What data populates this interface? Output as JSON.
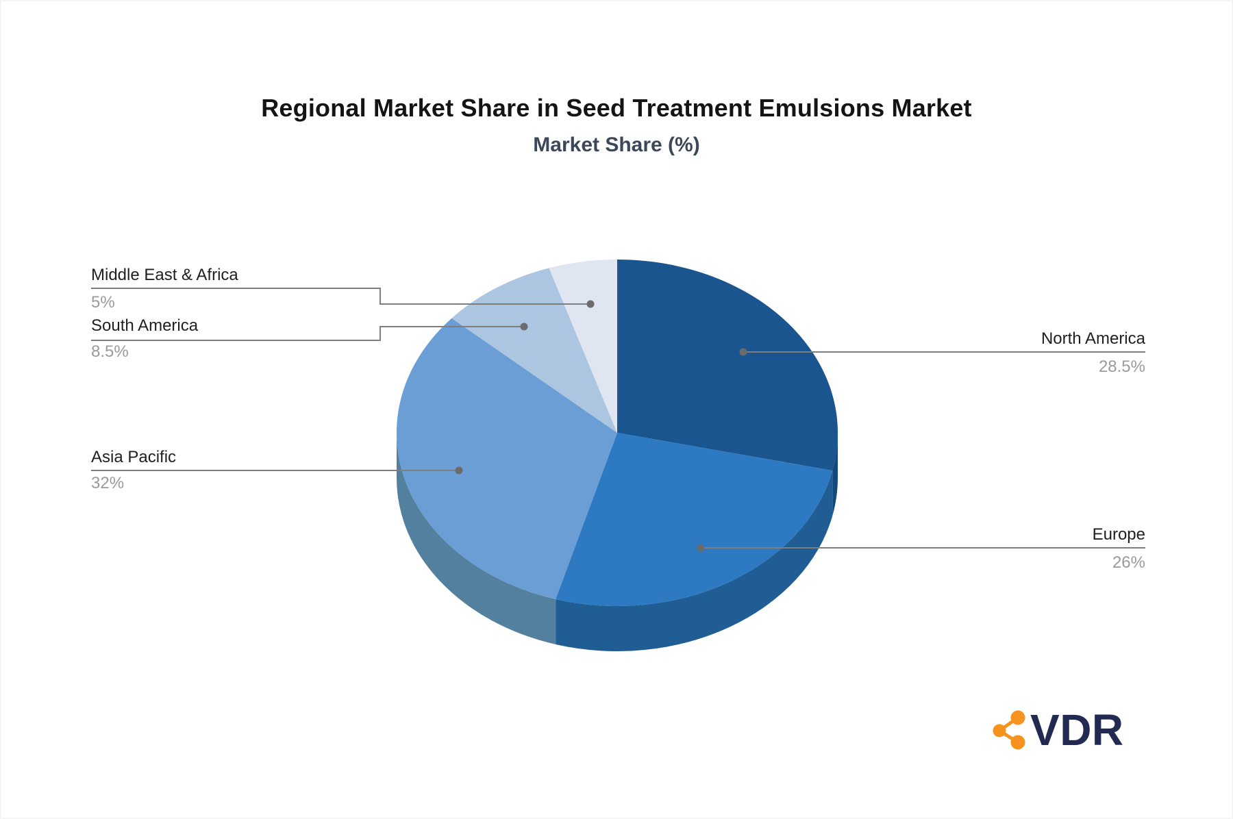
{
  "chart_data": {
    "type": "pie",
    "title": "Regional Market Share in Seed Treatment Emulsions Market",
    "subtitle": "Market Share (%)",
    "unit": "%",
    "style": "3d",
    "direction": "clockwise",
    "start_angle_deg": 0,
    "legend_position": "callout-labels",
    "slices": [
      {
        "label": "North America",
        "value": 28.5,
        "display": "28.5%",
        "color": "#1B5590",
        "side_color": "#14497C"
      },
      {
        "label": "Europe",
        "value": 26,
        "display": "26%",
        "color": "#2D7AC3",
        "side_color": "#1F5D94"
      },
      {
        "label": "Asia Pacific",
        "value": 32,
        "display": "32%",
        "color": "#6A9ED4",
        "side_color": "#54809F"
      },
      {
        "label": "South America",
        "value": 8.5,
        "display": "8.5%",
        "color": "#ACC6E2",
        "side_color": "#8FAFC9"
      },
      {
        "label": "Middle East & Africa",
        "value": 5,
        "display": "5%",
        "color": "#DFE6F1",
        "side_color": "#C3CEDC"
      }
    ]
  },
  "logo": {
    "text": "VDR",
    "icon": "share-network-icon",
    "icon_color": "#F6921E",
    "text_color": "#232A52"
  },
  "colors": {
    "background": "#FFFFFF",
    "title": "#141414",
    "subtitle": "#3C4859",
    "label_text": "#1F1F1F",
    "value_text": "#9A9A9A",
    "leader_line": "#7E7E7E",
    "dot": "#6B6B6B"
  }
}
